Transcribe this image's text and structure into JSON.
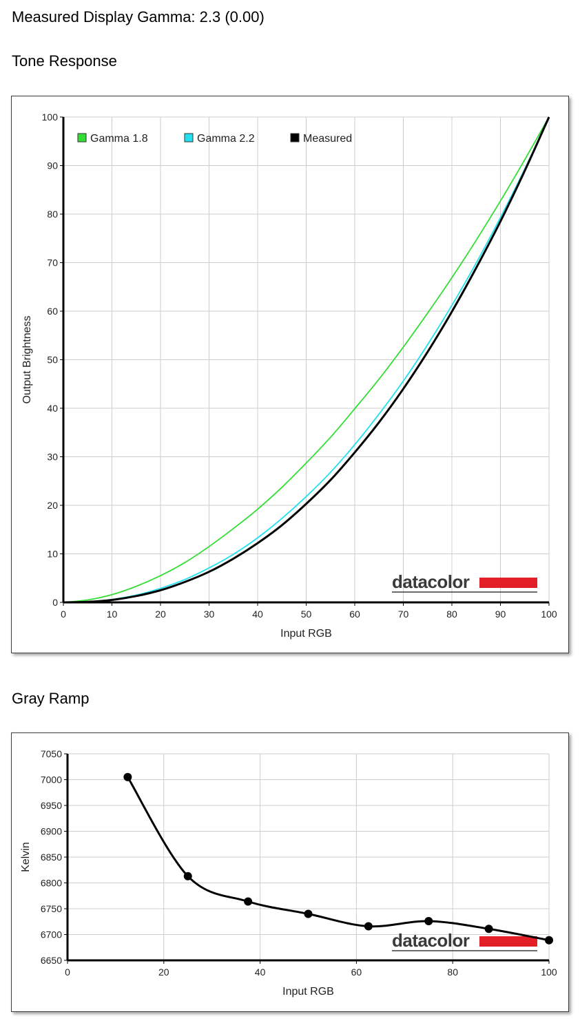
{
  "header": {
    "measured_gamma": "Measured Display Gamma: 2.3 (0.00)"
  },
  "sections": [
    {
      "title": "Tone Response"
    },
    {
      "title": "Gray Ramp"
    }
  ],
  "colors": {
    "gamma18": "#33dd33",
    "gamma22": "#22e0f0",
    "measured": "#000000",
    "grid": "#cccccc",
    "brand_bar": "#e21f26"
  },
  "brand": "datacolor",
  "chart_data": [
    {
      "type": "line",
      "xlabel": "Input RGB",
      "ylabel": "Output Brightness",
      "xlim": [
        0,
        100
      ],
      "ylim": [
        0,
        100
      ],
      "xticks": [
        0,
        10,
        20,
        30,
        40,
        50,
        60,
        70,
        80,
        90,
        100
      ],
      "yticks": [
        0,
        10,
        20,
        30,
        40,
        50,
        60,
        70,
        80,
        90,
        100
      ],
      "grid": true,
      "legend_position": "top-left",
      "series": [
        {
          "name": "Gamma 1.8",
          "color": "#33dd33",
          "x": [
            0,
            5,
            10,
            15,
            20,
            25,
            30,
            35,
            40,
            45,
            50,
            55,
            60,
            65,
            70,
            75,
            80,
            85,
            90,
            95,
            100
          ],
          "y": [
            0.0,
            0.5,
            1.6,
            3.3,
            5.5,
            8.2,
            11.5,
            15.2,
            19.2,
            23.7,
            28.7,
            34.0,
            39.9,
            46.0,
            52.6,
            59.6,
            66.9,
            74.6,
            82.7,
            91.2,
            100.0
          ]
        },
        {
          "name": "Gamma 2.2",
          "color": "#22e0f0",
          "x": [
            0,
            5,
            10,
            15,
            20,
            25,
            30,
            35,
            40,
            45,
            50,
            55,
            60,
            65,
            70,
            75,
            80,
            85,
            90,
            95,
            100
          ],
          "y": [
            0.0,
            0.1,
            0.6,
            1.5,
            2.9,
            4.7,
            7.1,
            9.9,
            13.3,
            17.3,
            21.8,
            26.8,
            32.5,
            38.8,
            45.6,
            53.1,
            61.2,
            69.9,
            79.3,
            89.3,
            100.0
          ]
        },
        {
          "name": "Measured",
          "color": "#000000",
          "x": [
            0,
            5,
            10,
            15,
            20,
            25,
            30,
            35,
            40,
            45,
            50,
            55,
            60,
            65,
            70,
            75,
            80,
            85,
            90,
            95,
            100
          ],
          "y": [
            0.0,
            0.1,
            0.5,
            1.3,
            2.5,
            4.2,
            6.3,
            9.0,
            12.2,
            15.9,
            20.3,
            25.2,
            30.9,
            37.1,
            44.0,
            51.6,
            59.9,
            68.9,
            78.5,
            88.9,
            100.0
          ]
        }
      ]
    },
    {
      "type": "line",
      "xlabel": "Input RGB",
      "ylabel": "Kelvin",
      "xlim": [
        0,
        100
      ],
      "ylim": [
        6650,
        7050
      ],
      "xticks": [
        0,
        20,
        40,
        60,
        80,
        100
      ],
      "yticks": [
        6650,
        6700,
        6750,
        6800,
        6850,
        6900,
        6950,
        7000,
        7050
      ],
      "grid": true,
      "series": [
        {
          "color": "#000000",
          "x": [
            12.5,
            25,
            37.5,
            50,
            62.5,
            75,
            87.5,
            100
          ],
          "y": [
            7005,
            6813,
            6764,
            6740,
            6716,
            6726,
            6711,
            6689
          ]
        }
      ]
    }
  ]
}
